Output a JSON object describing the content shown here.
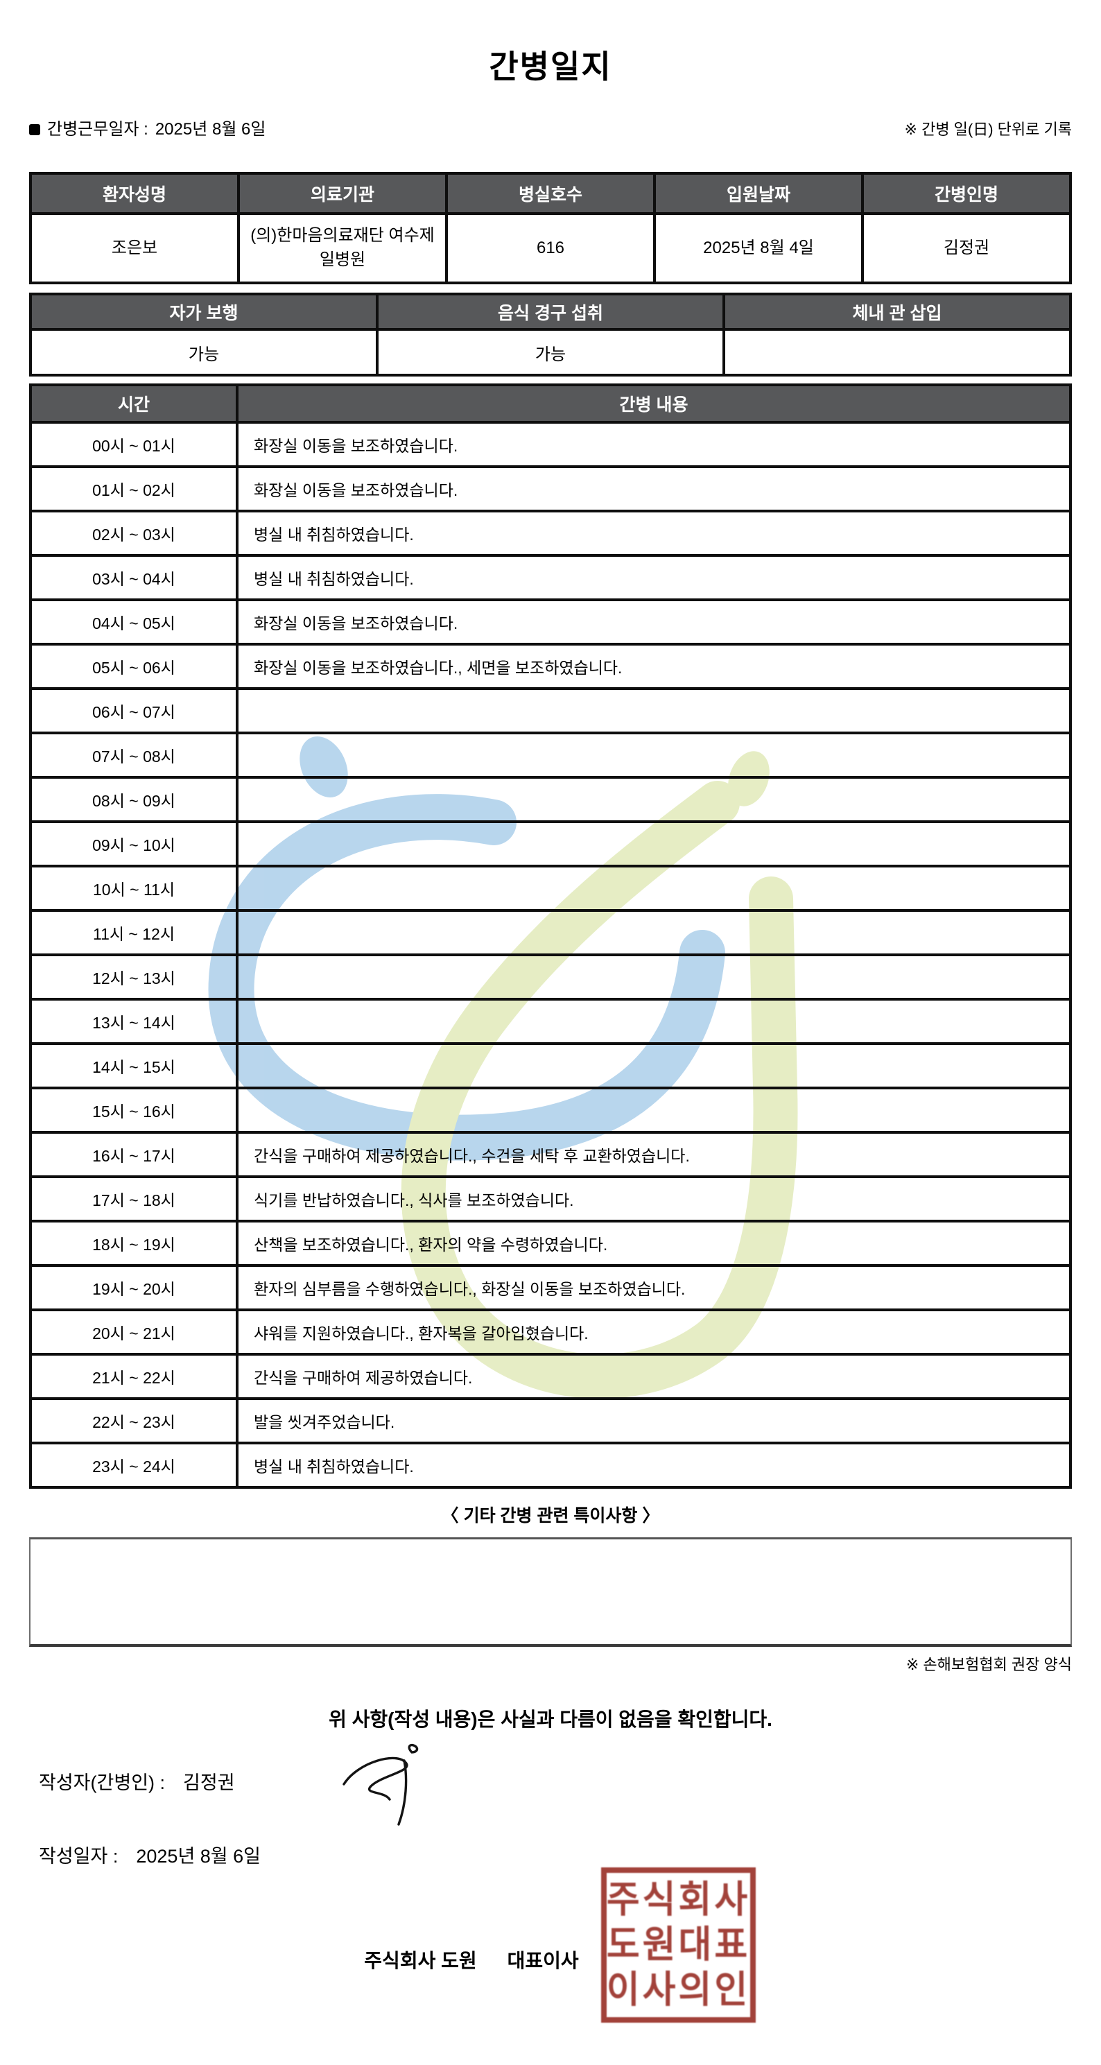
{
  "page": {
    "title": "간병일지",
    "work_date_label": "간병근무일자  :",
    "work_date_value": "2025년 8월 6일",
    "unit_note": "※ 간병 일(日) 단위로 기록"
  },
  "patient_table": {
    "headers": [
      "환자성명",
      "의료기관",
      "병실호수",
      "입원날짜",
      "간병인명"
    ],
    "values": [
      "조은보",
      "(의)한마음의료재단 여수제일병원",
      "616",
      "2025년 8월 4일",
      "김정권"
    ]
  },
  "status_table": {
    "headers": [
      "자가 보행",
      "음식 경구 섭취",
      "체내 관 삽입"
    ],
    "values": [
      "가능",
      "가능",
      ""
    ]
  },
  "care_log": {
    "time_header": "시간",
    "content_header": "간병 내용",
    "rows": [
      {
        "time": "00시 ~ 01시",
        "content": "화장실 이동을 보조하였습니다."
      },
      {
        "time": "01시 ~ 02시",
        "content": "화장실 이동을 보조하였습니다."
      },
      {
        "time": "02시 ~ 03시",
        "content": "병실 내 취침하였습니다."
      },
      {
        "time": "03시 ~ 04시",
        "content": "병실 내 취침하였습니다."
      },
      {
        "time": "04시 ~ 05시",
        "content": "화장실 이동을 보조하였습니다."
      },
      {
        "time": "05시 ~ 06시",
        "content": "화장실 이동을 보조하였습니다., 세면을 보조하였습니다."
      },
      {
        "time": "06시 ~ 07시",
        "content": ""
      },
      {
        "time": "07시 ~ 08시",
        "content": ""
      },
      {
        "time": "08시 ~ 09시",
        "content": ""
      },
      {
        "time": "09시 ~ 10시",
        "content": ""
      },
      {
        "time": "10시 ~ 11시",
        "content": ""
      },
      {
        "time": "11시 ~ 12시",
        "content": ""
      },
      {
        "time": "12시 ~ 13시",
        "content": ""
      },
      {
        "time": "13시 ~ 14시",
        "content": ""
      },
      {
        "time": "14시 ~ 15시",
        "content": ""
      },
      {
        "time": "15시 ~ 16시",
        "content": ""
      },
      {
        "time": "16시 ~ 17시",
        "content": "간식을 구매하여 제공하였습니다., 수건을 세탁 후 교환하였습니다."
      },
      {
        "time": "17시 ~ 18시",
        "content": "식기를 반납하였습니다., 식사를 보조하였습니다."
      },
      {
        "time": "18시 ~ 19시",
        "content": "산책을 보조하였습니다., 환자의 약을 수령하였습니다."
      },
      {
        "time": "19시 ~ 20시",
        "content": "환자의 심부름을 수행하였습니다., 화장실 이동을 보조하였습니다."
      },
      {
        "time": "20시 ~ 21시",
        "content": "샤워를 지원하였습니다., 환자복을 갈아입혔습니다."
      },
      {
        "time": "21시 ~ 22시",
        "content": "간식을 구매하여 제공하였습니다."
      },
      {
        "time": "22시 ~ 23시",
        "content": "발을 씻겨주었습니다."
      },
      {
        "time": "23시 ~ 24시",
        "content": "병실 내 취침하였습니다."
      }
    ]
  },
  "notes": {
    "heading": "〈 기타 간병 관련 특이사항 〉",
    "content": "",
    "form_note": "※ 손해보험협회 권장 양식"
  },
  "footer": {
    "confirmation": "위 사항(작성 내용)은 사실과 다름이 없음을 확인합니다.",
    "writer_label": "작성자(간병인) :",
    "writer_name": "김정권",
    "date_label": "작성일자 :",
    "date_value": "2025년 8월 6일",
    "company": "주식회사 도원",
    "ceo_title": "대표이사",
    "seal_lines": [
      "주식회사",
      "도원대표",
      "이사의인"
    ]
  },
  "colors": {
    "header_bg": "#57585a",
    "grid_line": "#0e0e0e",
    "seal_red": "#9c342c",
    "watermark_blue": "#b3d3ec",
    "watermark_green": "#e4ecc0"
  }
}
